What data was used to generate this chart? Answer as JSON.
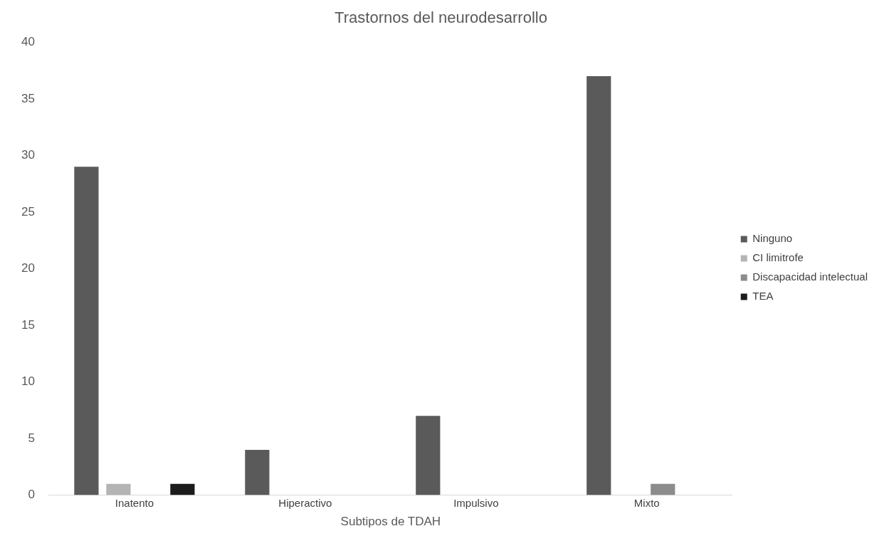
{
  "chart_data": {
    "type": "bar",
    "title": "Trastornos del neurodesarrollo",
    "xlabel": "Subtipos de TDAH",
    "categories": [
      "Inatento",
      "Hiperactivo",
      "Impulsivo",
      "Mixto"
    ],
    "series": [
      {
        "name": "Ninguno",
        "color": "#5a5a5a",
        "values": [
          29,
          4,
          7,
          37
        ]
      },
      {
        "name": "CI limitrofe",
        "color": "#b4b4b4",
        "values": [
          1,
          0,
          0,
          0
        ]
      },
      {
        "name": "Discapacidad intelectual",
        "color": "#8c8c8c",
        "values": [
          0,
          0,
          0,
          1
        ]
      },
      {
        "name": "TEA",
        "color": "#1c1c1c",
        "values": [
          1,
          0,
          0,
          0
        ]
      }
    ],
    "ylim": [
      0,
      40
    ],
    "yticks": [
      0,
      5,
      10,
      15,
      20,
      25,
      30,
      35,
      40
    ],
    "grid": false,
    "legend": "right"
  }
}
